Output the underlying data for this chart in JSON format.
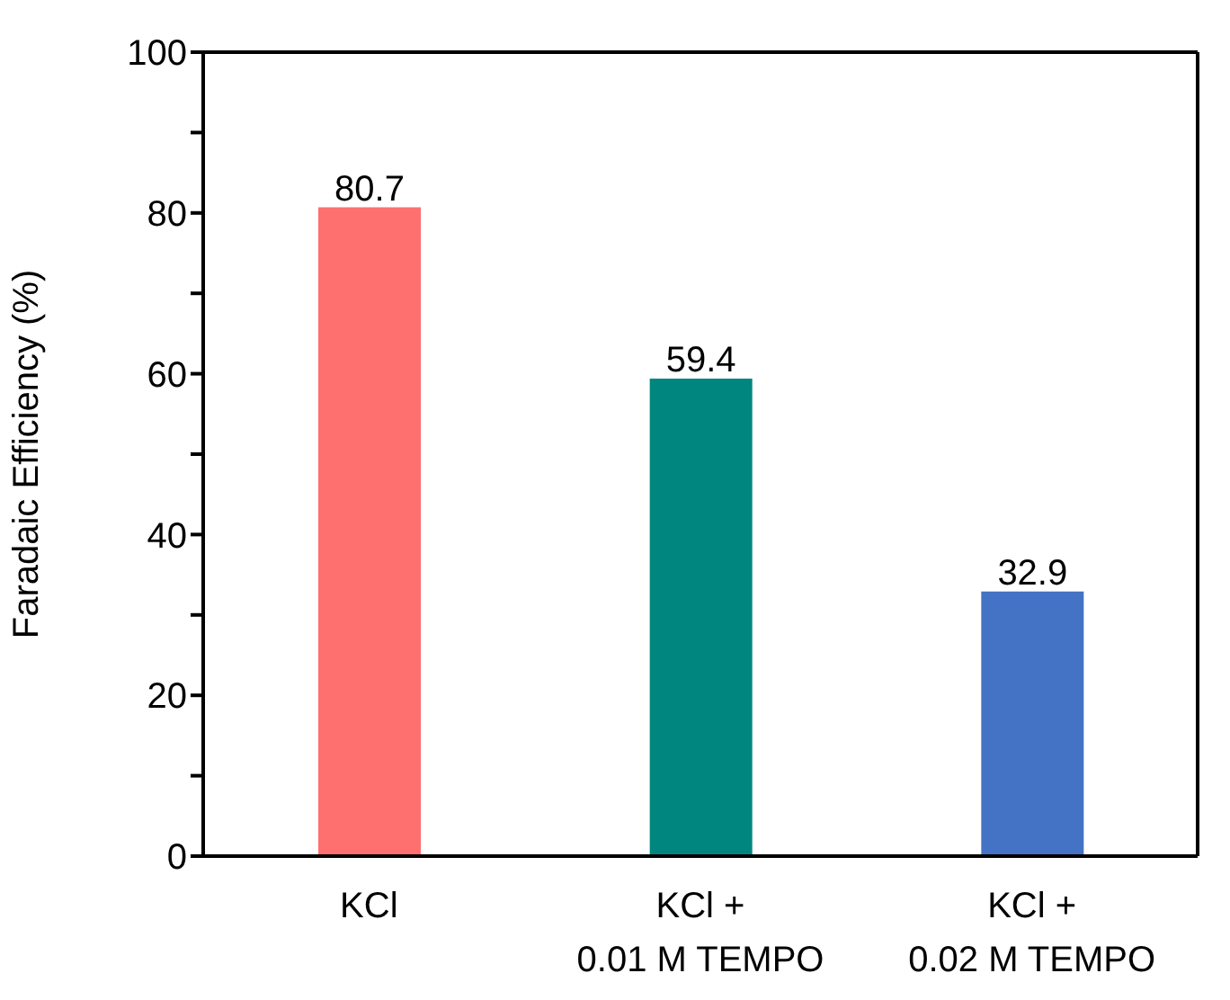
{
  "chart_data": {
    "type": "bar",
    "ylabel": "Faradaic Efficiency (%)",
    "categories": [
      "KCl",
      "KCl +\n0.01 M TEMPO",
      "KCl +\n0.02 M TEMPO"
    ],
    "values": [
      80.7,
      59.4,
      32.9
    ],
    "colors": [
      "#fe6f6f",
      "#00867f",
      "#4472c4"
    ],
    "ylim": [
      0,
      100
    ],
    "yticks": [
      0,
      {
        "value": 10,
        "label": null
      },
      20,
      {
        "value": 30,
        "label": null
      },
      40,
      {
        "value": 50,
        "label": null
      },
      60,
      {
        "value": 70,
        "label": null
      },
      80,
      {
        "value": 90,
        "label": null
      },
      100
    ],
    "data_labels": true
  }
}
